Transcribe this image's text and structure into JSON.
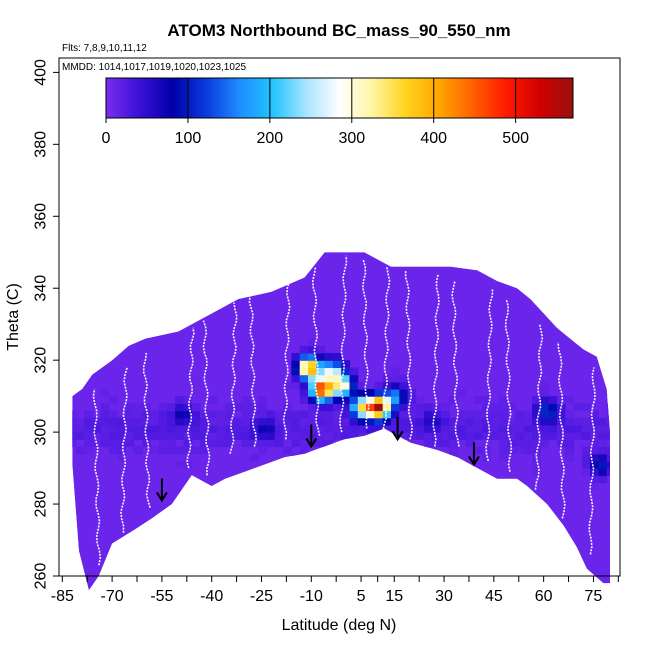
{
  "chart_data": {
    "type": "heatmap",
    "title": "ATOM3 Northbound BC_mass_90_550_nm",
    "flights_text": "Flts: 7,8,9,10,11,12",
    "mmdd_text": "MMDD: 1014,1017,1019,1020,1023,1025",
    "xlabel": "Latitude (deg N)",
    "ylabel": "Theta (C)",
    "xlim": [
      -86,
      83
    ],
    "ylim": [
      260,
      404
    ],
    "x_ticks": [
      -85,
      -70,
      -55,
      -40,
      -25,
      -10,
      5,
      15,
      30,
      45,
      60,
      75
    ],
    "x_tick_labels": [
      "-85",
      "-70",
      "-55",
      "-40",
      "-25",
      "-10",
      "5",
      "15",
      "30",
      "45",
      "60",
      "75"
    ],
    "x_minor_ticks": [
      -77.5,
      -62.5,
      -47.5,
      -32.5,
      -17.5,
      -2.5,
      10,
      22.5,
      37.5,
      52.5,
      67.5,
      82.5
    ],
    "y_ticks": [
      260,
      280,
      300,
      320,
      340,
      360,
      380,
      400
    ],
    "y_tick_labels": [
      "260",
      "280",
      "300",
      "320",
      "340",
      "360",
      "380",
      "400"
    ],
    "colorbar": {
      "range": [
        0,
        570
      ],
      "ticks": [
        0,
        100,
        200,
        300,
        400,
        500
      ],
      "tick_labels": [
        "0",
        "100",
        "200",
        "300",
        "400",
        "500"
      ],
      "colors": [
        "#7b2cf0",
        "#3a10d8",
        "#0000aa",
        "#0a3adc",
        "#1f8cff",
        "#22c4ff",
        "#a8e4ff",
        "#ffffff",
        "#fff5a0",
        "#ffd21e",
        "#ffa500",
        "#ff6000",
        "#ff1a00",
        "#d00000",
        "#9a1010"
      ]
    },
    "background_value": 10,
    "coverage_outline": {
      "upper": [
        [
          -82,
          310
        ],
        [
          -79,
          312
        ],
        [
          -76,
          316
        ],
        [
          -70,
          320
        ],
        [
          -65,
          324
        ],
        [
          -60,
          326
        ],
        [
          -50,
          328
        ],
        [
          -42,
          332
        ],
        [
          -32,
          337
        ],
        [
          -22,
          339
        ],
        [
          -12,
          343
        ],
        [
          -6,
          350
        ],
        [
          6,
          350
        ],
        [
          14,
          346
        ],
        [
          22,
          346
        ],
        [
          32,
          346
        ],
        [
          40,
          345
        ],
        [
          46,
          342
        ],
        [
          52,
          340
        ],
        [
          56,
          337
        ],
        [
          60,
          333
        ],
        [
          64,
          329
        ],
        [
          68,
          326
        ],
        [
          72,
          323
        ],
        [
          76,
          321
        ],
        [
          79,
          312
        ],
        [
          80,
          300
        ]
      ],
      "lower": [
        [
          80,
          258
        ],
        [
          78,
          258
        ],
        [
          73,
          262
        ],
        [
          70,
          268
        ],
        [
          66,
          274
        ],
        [
          61,
          280
        ],
        [
          55,
          285
        ],
        [
          52,
          287
        ],
        [
          46,
          287
        ],
        [
          40,
          290
        ],
        [
          34,
          293
        ],
        [
          28,
          295
        ],
        [
          20,
          297
        ],
        [
          12,
          301
        ],
        [
          6,
          299
        ],
        [
          0,
          298
        ],
        [
          -6,
          296
        ],
        [
          -12,
          294
        ],
        [
          -18,
          293
        ],
        [
          -24,
          291
        ],
        [
          -30,
          289
        ],
        [
          -36,
          287
        ],
        [
          -40,
          285
        ],
        [
          -46,
          288
        ],
        [
          -52,
          280
        ],
        [
          -58,
          276
        ],
        [
          -63,
          273
        ],
        [
          -70,
          269
        ],
        [
          -74,
          260
        ],
        [
          -77,
          256
        ],
        [
          -80,
          267
        ],
        [
          -82,
          291
        ]
      ]
    },
    "hotspots": [
      {
        "lat": -12,
        "theta": 317,
        "value": 430
      },
      {
        "lat": -5,
        "theta": 316,
        "value": 240
      },
      {
        "lat": -8,
        "theta": 311,
        "value": 480
      },
      {
        "lat": -2,
        "theta": 312,
        "value": 300
      },
      {
        "lat": 4,
        "theta": 306,
        "value": 300
      },
      {
        "lat": 9,
        "theta": 306,
        "value": 530
      },
      {
        "lat": 14,
        "theta": 309,
        "value": 150
      },
      {
        "lat": 60,
        "theta": 305,
        "value": 110
      },
      {
        "lat": 76,
        "theta": 290,
        "value": 90
      },
      {
        "lat": -50,
        "theta": 304,
        "value": 60
      },
      {
        "lat": -25,
        "theta": 300,
        "value": 50
      },
      {
        "lat": 25,
        "theta": 302,
        "value": 40
      }
    ],
    "tropopause_arrows": [
      {
        "lat": -55,
        "theta": 281
      },
      {
        "lat": -10,
        "theta": 296
      },
      {
        "lat": 16,
        "theta": 298
      },
      {
        "lat": 39,
        "theta": 291
      }
    ],
    "profile_traces": [
      {
        "lat": -74,
        "theta_bottom": 263,
        "theta_top": 312
      },
      {
        "lat": -67,
        "theta_bottom": 272,
        "theta_top": 318
      },
      {
        "lat": -59,
        "theta_bottom": 279,
        "theta_top": 322
      },
      {
        "lat": -47,
        "theta_bottom": 290,
        "theta_top": 329
      },
      {
        "lat": -41,
        "theta_bottom": 288,
        "theta_top": 331
      },
      {
        "lat": -34,
        "theta_bottom": 294,
        "theta_top": 336
      },
      {
        "lat": -27,
        "theta_bottom": 296,
        "theta_top": 338
      },
      {
        "lat": -18,
        "theta_bottom": 298,
        "theta_top": 342
      },
      {
        "lat": -8,
        "theta_bottom": 299,
        "theta_top": 346
      },
      {
        "lat": -1,
        "theta_bottom": 300,
        "theta_top": 349
      },
      {
        "lat": 7,
        "theta_bottom": 301,
        "theta_top": 348
      },
      {
        "lat": 12,
        "theta_bottom": 300,
        "theta_top": 346
      },
      {
        "lat": 20,
        "theta_bottom": 298,
        "theta_top": 345
      },
      {
        "lat": 27,
        "theta_bottom": 296,
        "theta_top": 344
      },
      {
        "lat": 34,
        "theta_bottom": 296,
        "theta_top": 342
      },
      {
        "lat": 43,
        "theta_bottom": 292,
        "theta_top": 340
      },
      {
        "lat": 50,
        "theta_bottom": 289,
        "theta_top": 337
      },
      {
        "lat": 58,
        "theta_bottom": 284,
        "theta_top": 330
      },
      {
        "lat": 66,
        "theta_bottom": 276,
        "theta_top": 325
      },
      {
        "lat": 74,
        "theta_bottom": 266,
        "theta_top": 318
      }
    ]
  }
}
